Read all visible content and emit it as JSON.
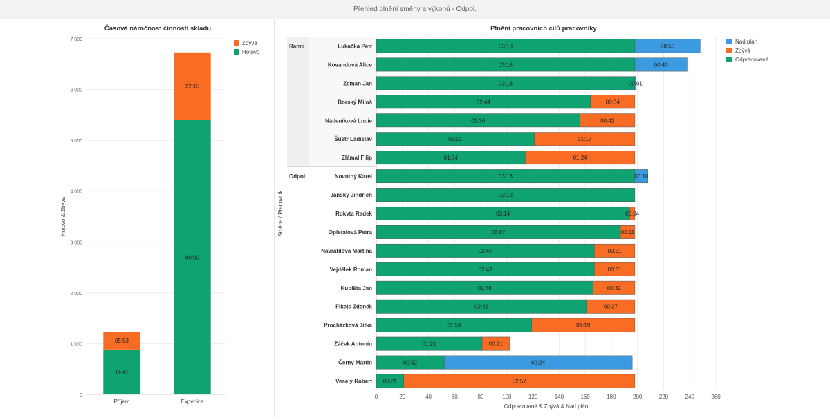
{
  "header": {
    "title": "Přehled plnění směny a výkonů - Odpol."
  },
  "chart_data": [
    {
      "type": "bar",
      "stacked": true,
      "title": "Časová náročnost činností skladu",
      "xlabel": "",
      "ylabel": "Hotovo & Zbyva",
      "categories": [
        "Příjem",
        "Expedice"
      ],
      "ylim": [
        0,
        7000
      ],
      "yticks": [
        0,
        1000,
        2000,
        3000,
        4000,
        5000,
        6000,
        7000
      ],
      "ytick_labels": [
        "0",
        "1 000",
        "2 000",
        "3 000",
        "4 000",
        "5 000",
        "6 000",
        "7 000"
      ],
      "grid": true,
      "legend_position": "top-right",
      "series": [
        {
          "name": "Hotovo",
          "color": "#0ea371",
          "values": [
            881,
            5400
          ],
          "labels": [
            "14:41",
            "90:00"
          ]
        },
        {
          "name": "Zbývá",
          "color": "#f86c23",
          "values": [
            353,
            1335
          ],
          "labels": [
            "05:53",
            "22:15"
          ]
        }
      ],
      "legend": [
        {
          "name": "Zbývá",
          "color": "#f86c23"
        },
        {
          "name": "Hotovo",
          "color": "#0ea371"
        }
      ]
    },
    {
      "type": "bar",
      "orientation": "horizontal",
      "stacked": true,
      "title": "Plnění pracovních cílů pracovníky",
      "xlabel": "Odpracované & Zbývá & Nad plán",
      "ylabel": "Směna / Pracovník",
      "xlim": [
        0,
        260
      ],
      "xticks": [
        0,
        20,
        40,
        60,
        80,
        100,
        120,
        140,
        160,
        180,
        200,
        220,
        240,
        260
      ],
      "grid": true,
      "legend_position": "top-right",
      "legend": [
        {
          "name": "Nad plán",
          "color": "#3c9be0"
        },
        {
          "name": "Zbývá",
          "color": "#f86c23"
        },
        {
          "name": "Odpracované",
          "color": "#0ea371"
        }
      ],
      "groups": [
        {
          "name": "Ranní",
          "rows": [
            {
              "name": "Lukačka Petr",
              "done": 198,
              "remain": 0,
              "over": 50,
              "labels": [
                "03:18",
                "",
                "00:50"
              ]
            },
            {
              "name": "Kovandová Alice",
              "done": 198,
              "remain": 0,
              "over": 40,
              "labels": [
                "03:18",
                "",
                "00:40"
              ]
            },
            {
              "name": "Zeman Jan",
              "done": 198,
              "remain": 0,
              "over": 1,
              "labels": [
                "03:18",
                "",
                "00:01"
              ]
            },
            {
              "name": "Borský Miloš",
              "done": 164,
              "remain": 34,
              "over": 0,
              "labels": [
                "02:44",
                "00:34",
                ""
              ]
            },
            {
              "name": "Nádeníková Lucie",
              "done": 156,
              "remain": 42,
              "over": 0,
              "labels": [
                "02:36",
                "00:42",
                ""
              ]
            },
            {
              "name": "Šustr Ladislav",
              "done": 121,
              "remain": 77,
              "over": 0,
              "labels": [
                "02:01",
                "01:17",
                ""
              ]
            },
            {
              "name": "Zlámal Filip",
              "done": 114,
              "remain": 84,
              "over": 0,
              "labels": [
                "01:54",
                "01:24",
                ""
              ]
            }
          ]
        },
        {
          "name": "Odpol.",
          "rows": [
            {
              "name": "Novotný Karel",
              "done": 198,
              "remain": 0,
              "over": 10,
              "labels": [
                "03:18",
                "",
                "00:10"
              ]
            },
            {
              "name": "Jánský Jindřich",
              "done": 198,
              "remain": 0,
              "over": 0,
              "labels": [
                "03:18",
                "",
                ""
              ]
            },
            {
              "name": "Rokyta Radek",
              "done": 194,
              "remain": 4,
              "over": 0,
              "labels": [
                "03:14",
                "00:04",
                ""
              ]
            },
            {
              "name": "Opletalová Petra",
              "done": 187,
              "remain": 11,
              "over": 0,
              "labels": [
                "03:07",
                "00:11",
                ""
              ]
            },
            {
              "name": "Navrátilová Martina",
              "done": 167,
              "remain": 31,
              "over": 0,
              "labels": [
                "02:47",
                "00:31",
                ""
              ]
            },
            {
              "name": "Vejdělek Roman",
              "done": 167,
              "remain": 31,
              "over": 0,
              "labels": [
                "02:47",
                "00:31",
                ""
              ]
            },
            {
              "name": "Kubišta Jan",
              "done": 166,
              "remain": 32,
              "over": 0,
              "labels": [
                "02:46",
                "00:32",
                ""
              ]
            },
            {
              "name": "Fikejs Zdeněk",
              "done": 161,
              "remain": 37,
              "over": 0,
              "labels": [
                "02:41",
                "00:37",
                ""
              ]
            },
            {
              "name": "Procházková Jitka",
              "done": 119,
              "remain": 79,
              "over": 0,
              "labels": [
                "01:59",
                "01:19",
                ""
              ]
            },
            {
              "name": "Žáček Antonín",
              "done": 81,
              "remain": 21,
              "over": 0,
              "labels": [
                "01:21",
                "00:21",
                ""
              ]
            },
            {
              "name": "Černý Martin",
              "done": 52,
              "remain": 0,
              "over": 144,
              "labels": [
                "00:52",
                "",
                "02:24"
              ]
            },
            {
              "name": "Veselý Robert",
              "done": 21,
              "remain": 177,
              "over": 0,
              "labels": [
                "00:21",
                "02:57",
                ""
              ]
            }
          ]
        }
      ]
    }
  ]
}
